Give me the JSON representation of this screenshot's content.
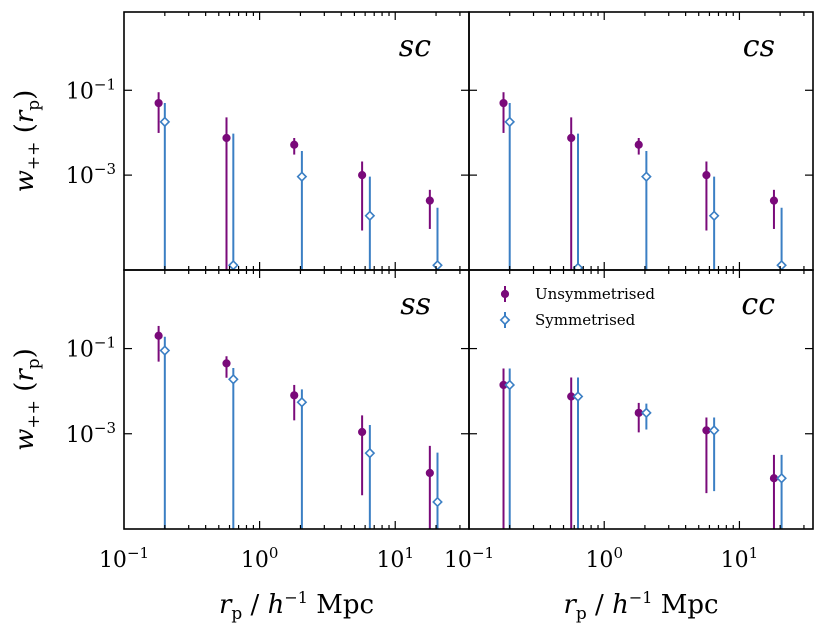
{
  "chart_data": {
    "type": "scatter",
    "errorbars": true,
    "xscale": "log",
    "yscale": "log",
    "xlim": [
      0.1,
      35
    ],
    "ylim": [
      5.8e-06,
      7
    ],
    "xlabel": "r_p / h^-1 Mpc",
    "ylabel": "w_++ (r_p)",
    "x_ticks": [
      0.1,
      1,
      10
    ],
    "x_tick_labels": [
      "10^-1",
      "10^0",
      "10^1"
    ],
    "y_ticks": [
      0.1,
      0.001
    ],
    "y_tick_labels": [
      "10^-1",
      "10^-3"
    ],
    "legend": {
      "placement": "upper-left of panel cc",
      "entries": [
        {
          "label": "Unsymmetrised",
          "marker": "filled-circle"
        },
        {
          "label": "Symmetrised",
          "marker": "open-diamond"
        }
      ]
    },
    "colors": {
      "Unsymmetrised": "#7a0a7a",
      "Symmetrised": "#3b7fc4"
    },
    "panels": [
      {
        "label": "sc",
        "series": [
          {
            "name": "Unsymmetrised",
            "x": [
              0.18,
              0.57,
              1.8,
              5.7,
              18
            ],
            "y": [
              0.05,
              0.0075,
              0.0052,
              0.001,
              0.00025
            ],
            "y_low": [
              0.011,
              5.8e-06,
              0.0034,
              5.5e-05,
              6e-05
            ],
            "y_high": [
              0.09,
              0.023,
              0.0075,
              0.0021,
              0.00045
            ]
          },
          {
            "name": "Symmetrised",
            "x": [
              0.2,
              0.64,
              2.05,
              6.5,
              20.5
            ],
            "y": [
              0.018,
              7.5e-06,
              0.00092,
              0.00011,
              7.5e-06
            ],
            "y_low": [
              5.8e-06,
              5.8e-06,
              5.8e-06,
              5.8e-06,
              5.8e-06
            ],
            "y_high": [
              0.05,
              0.0095,
              0.0037,
              0.00092,
              0.00017
            ]
          }
        ]
      },
      {
        "label": "cs",
        "series": [
          {
            "name": "Unsymmetrised",
            "x": [
              0.18,
              0.57,
              1.8,
              5.7,
              18
            ],
            "y": [
              0.05,
              0.0075,
              0.0052,
              0.001,
              0.00025
            ],
            "y_low": [
              0.011,
              5.8e-06,
              0.0034,
              5.5e-05,
              6e-05
            ],
            "y_high": [
              0.09,
              0.023,
              0.0075,
              0.0021,
              0.00045
            ]
          },
          {
            "name": "Symmetrised",
            "x": [
              0.2,
              0.64,
              2.05,
              6.5,
              20.5
            ],
            "y": [
              0.018,
              6.5e-06,
              0.00092,
              0.00011,
              7.5e-06
            ],
            "y_low": [
              5.8e-06,
              5.8e-06,
              5.8e-06,
              5.8e-06,
              5.8e-06
            ],
            "y_high": [
              0.05,
              0.0095,
              0.0037,
              0.00092,
              0.00017
            ]
          }
        ]
      },
      {
        "label": "ss",
        "series": [
          {
            "name": "Unsymmetrised",
            "x": [
              0.18,
              0.57,
              1.8,
              5.7,
              18
            ],
            "y": [
              0.2,
              0.045,
              0.008,
              0.0011,
              0.00012
            ],
            "y_low": [
              0.055,
              0.023,
              0.0023,
              4e-05,
              5.8e-06
            ],
            "y_high": [
              0.34,
              0.066,
              0.014,
              0.0027,
              0.00052
            ]
          },
          {
            "name": "Symmetrised",
            "x": [
              0.2,
              0.64,
              2.05,
              6.5,
              20.5
            ],
            "y": [
              0.09,
              0.019,
              0.0055,
              0.00035,
              2.5e-05
            ],
            "y_low": [
              5.8e-06,
              5.8e-06,
              5.8e-06,
              5.8e-06,
              5.8e-06
            ],
            "y_high": [
              0.19,
              0.035,
              0.011,
              0.0016,
              0.00036
            ]
          }
        ]
      },
      {
        "label": "cc",
        "series": [
          {
            "name": "Unsymmetrised",
            "x": [
              0.18,
              0.57,
              1.8,
              5.7,
              18
            ],
            "y": [
              0.014,
              0.0075,
              0.0031,
              0.0012,
              9e-05
            ],
            "y_low": [
              5.8e-06,
              5.8e-06,
              0.0012,
              4.5e-05,
              5.8e-06
            ],
            "y_high": [
              0.034,
              0.021,
              0.0053,
              0.0024,
              0.00032
            ]
          },
          {
            "name": "Symmetrised",
            "x": [
              0.2,
              0.64,
              2.05,
              6.5,
              20.5
            ],
            "y": [
              0.014,
              0.0075,
              0.0031,
              0.0012,
              9e-05
            ],
            "y_low": [
              5.8e-06,
              5.8e-06,
              0.0014,
              5e-05,
              5.8e-06
            ],
            "y_high": [
              0.034,
              0.021,
              0.0051,
              0.0024,
              0.00032
            ]
          }
        ]
      }
    ]
  }
}
